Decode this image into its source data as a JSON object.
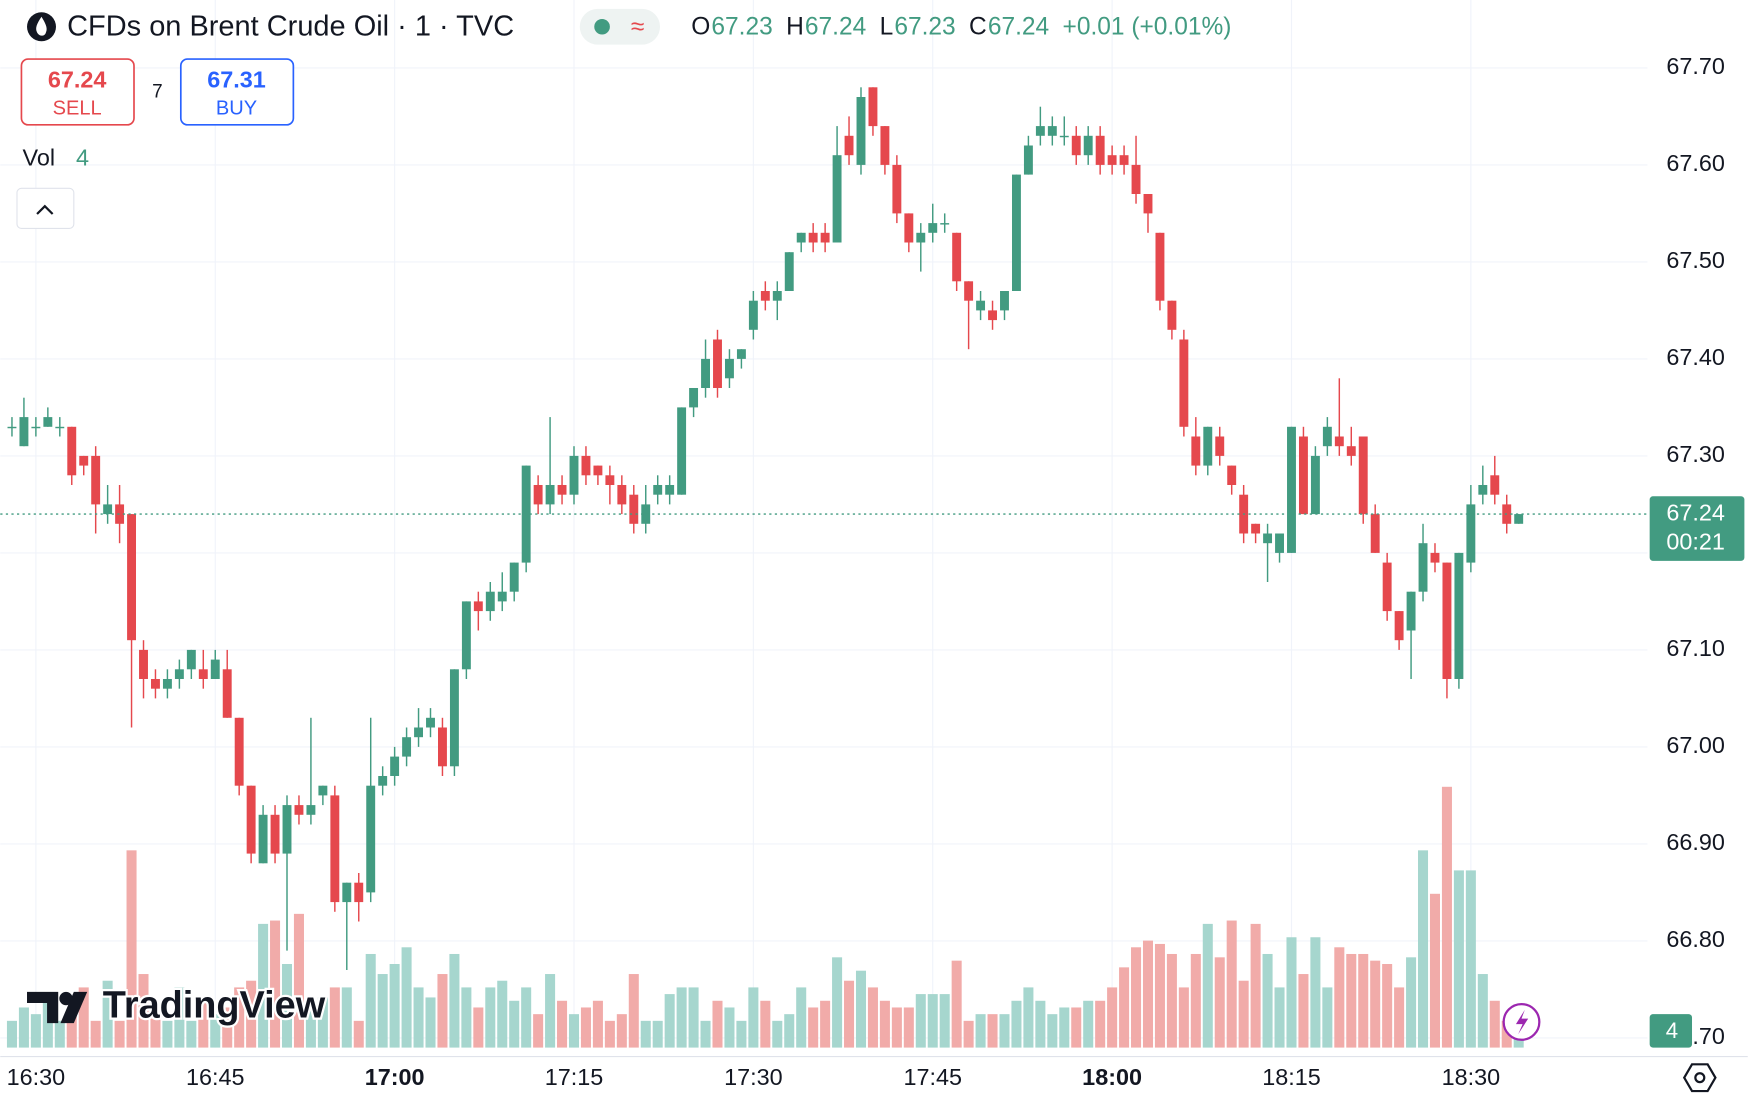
{
  "header": {
    "symbol": "CFDs on Brent Crude Oil · 1 · TVC",
    "sell_price": "67.24",
    "sell_label": "SELL",
    "spread": "7",
    "buy_price": "67.31",
    "buy_label": "BUY",
    "ohlc_labels": [
      "O",
      "H",
      "L",
      "C"
    ],
    "change": "+0.01 (+0.01%)",
    "volume_label": "Vol",
    "countdown": "00:21",
    "logo": "TradingView"
  },
  "chart_data": {
    "type": "candlestick",
    "up_color": "#429b81",
    "down_color": "#e5484d",
    "volume_up_color": "#a6d6ce",
    "volume_down_color": "#f1aba9",
    "ylim": [
      66.69,
      67.77
    ],
    "yticks": [
      {
        "value": 66.7,
        "label": "66.70"
      },
      {
        "value": 66.8,
        "label": "66.80"
      },
      {
        "value": 66.9,
        "label": "66.90"
      },
      {
        "value": 67.0,
        "label": "67.00"
      },
      {
        "value": 67.1,
        "label": "67.10"
      },
      {
        "value": 67.2,
        "label": "67.20"
      },
      {
        "value": 67.3,
        "label": "67.30"
      },
      {
        "value": 67.4,
        "label": "67.40"
      },
      {
        "value": 67.5,
        "label": "67.50"
      },
      {
        "value": 67.6,
        "label": "67.60"
      },
      {
        "value": 67.7,
        "label": "67.70"
      }
    ],
    "xticks": [
      "16:30",
      "16:45",
      "17:00",
      "17:15",
      "17:30",
      "17:45",
      "18:00",
      "18:15",
      "18:30"
    ],
    "grid": true,
    "x": [
      "16:28",
      "16:29",
      "16:30",
      "16:31",
      "16:32",
      "16:33",
      "16:34",
      "16:35",
      "16:36",
      "16:37",
      "16:38",
      "16:39",
      "16:40",
      "16:41",
      "16:42",
      "16:43",
      "16:44",
      "16:45",
      "16:46",
      "16:47",
      "16:48",
      "16:49",
      "16:50",
      "16:51",
      "16:52",
      "16:53",
      "16:54",
      "16:55",
      "16:56",
      "16:57",
      "16:58",
      "16:59",
      "17:00",
      "17:01",
      "17:02",
      "17:03",
      "17:04",
      "17:05",
      "17:06",
      "17:07",
      "17:08",
      "17:09",
      "17:10",
      "17:11",
      "17:12",
      "17:13",
      "17:14",
      "17:15",
      "17:16",
      "17:17",
      "17:18",
      "17:19",
      "17:20",
      "17:21",
      "17:22",
      "17:23",
      "17:24",
      "17:25",
      "17:26",
      "17:27",
      "17:28",
      "17:29",
      "17:30",
      "17:31",
      "17:32",
      "17:33",
      "17:34",
      "17:35",
      "17:36",
      "17:37",
      "17:38",
      "17:39",
      "17:40",
      "17:41",
      "17:42",
      "17:43",
      "17:44",
      "17:45",
      "17:46",
      "17:47",
      "17:48",
      "17:49",
      "17:50",
      "17:51",
      "17:52",
      "17:53",
      "17:54",
      "17:55",
      "17:56",
      "17:57",
      "17:58",
      "17:59",
      "18:00",
      "18:01",
      "18:02",
      "18:03",
      "18:04",
      "18:05",
      "18:06",
      "18:07",
      "18:08",
      "18:09",
      "18:10",
      "18:11",
      "18:12",
      "18:13",
      "18:14",
      "18:15",
      "18:16",
      "18:17",
      "18:18",
      "18:19",
      "18:20",
      "18:21",
      "18:22",
      "18:23",
      "18:24",
      "18:25",
      "18:26",
      "18:27",
      "18:28",
      "18:29",
      "18:30",
      "18:31",
      "18:32",
      "18:33",
      "18:34"
    ],
    "open": [
      67.33,
      67.31,
      67.33,
      67.33,
      67.33,
      67.33,
      67.3,
      67.3,
      67.24,
      67.25,
      67.24,
      67.1,
      67.07,
      67.06,
      67.07,
      67.08,
      67.08,
      67.07,
      67.08,
      67.03,
      66.96,
      66.88,
      66.93,
      66.89,
      66.94,
      66.93,
      66.95,
      66.95,
      66.84,
      66.86,
      66.85,
      66.96,
      66.97,
      66.99,
      67.01,
      67.02,
      67.02,
      66.98,
      67.08,
      67.15,
      67.14,
      67.15,
      67.16,
      67.19,
      67.27,
      67.25,
      67.27,
      67.26,
      67.3,
      67.29,
      67.28,
      67.27,
      67.26,
      67.23,
      67.26,
      67.26,
      67.26,
      67.35,
      67.37,
      67.42,
      67.38,
      67.4,
      67.43,
      67.47,
      67.46,
      67.47,
      67.52,
      67.53,
      67.53,
      67.52,
      67.63,
      67.6,
      67.68,
      67.64,
      67.6,
      67.55,
      67.52,
      67.53,
      67.54,
      67.53,
      67.48,
      67.45,
      67.45,
      67.45,
      67.47,
      67.59,
      67.63,
      67.63,
      67.63,
      67.63,
      67.61,
      67.63,
      67.61,
      67.61,
      67.6,
      67.57,
      67.53,
      67.46,
      67.42,
      67.32,
      67.29,
      67.32,
      67.29,
      67.26,
      67.23,
      67.21,
      67.2,
      67.2,
      67.32,
      67.24,
      67.31,
      67.32,
      67.31,
      67.32,
      67.24,
      67.19,
      67.14,
      67.12,
      67.16,
      67.2,
      67.19,
      67.07,
      67.19,
      67.26,
      67.28,
      67.25,
      67.23
    ],
    "high": [
      67.34,
      67.36,
      67.34,
      67.35,
      67.34,
      67.33,
      67.3,
      67.31,
      67.27,
      67.27,
      67.24,
      67.11,
      67.08,
      67.08,
      67.09,
      67.1,
      67.1,
      67.1,
      67.1,
      67.03,
      66.96,
      66.94,
      66.94,
      66.95,
      66.95,
      67.03,
      66.96,
      66.96,
      66.86,
      66.87,
      67.03,
      66.98,
      67.0,
      67.02,
      67.04,
      67.04,
      67.03,
      67.08,
      67.15,
      67.16,
      67.17,
      67.18,
      67.19,
      67.29,
      67.28,
      67.34,
      67.28,
      67.31,
      67.31,
      67.29,
      67.29,
      67.28,
      67.27,
      67.27,
      67.28,
      67.28,
      67.35,
      67.37,
      67.42,
      67.43,
      67.41,
      67.41,
      67.47,
      67.48,
      67.48,
      67.51,
      67.53,
      67.54,
      67.54,
      67.64,
      67.65,
      67.68,
      67.68,
      67.64,
      67.61,
      67.55,
      67.54,
      67.56,
      67.55,
      67.53,
      67.48,
      67.47,
      67.46,
      67.47,
      67.59,
      67.63,
      67.66,
      67.65,
      67.65,
      67.64,
      67.64,
      67.64,
      67.62,
      67.62,
      67.63,
      67.57,
      67.53,
      67.46,
      67.43,
      67.34,
      67.33,
      67.33,
      67.29,
      67.27,
      67.23,
      67.23,
      67.22,
      67.33,
      67.33,
      67.31,
      67.34,
      67.38,
      67.33,
      67.32,
      67.25,
      67.2,
      67.14,
      67.16,
      67.23,
      67.21,
      67.19,
      67.2,
      67.27,
      67.29,
      67.3,
      67.26,
      67.24
    ],
    "low": [
      67.32,
      67.31,
      67.32,
      67.33,
      67.32,
      67.27,
      67.28,
      67.22,
      67.23,
      67.21,
      67.02,
      67.05,
      67.05,
      67.05,
      67.06,
      67.07,
      67.06,
      67.07,
      67.03,
      66.95,
      66.88,
      66.88,
      66.88,
      66.79,
      66.92,
      66.92,
      66.94,
      66.83,
      66.77,
      66.82,
      66.84,
      66.95,
      66.96,
      66.98,
      67.0,
      67.01,
      66.97,
      66.97,
      67.07,
      67.12,
      67.13,
      67.14,
      67.15,
      67.18,
      67.24,
      67.24,
      67.25,
      67.25,
      67.27,
      67.27,
      67.25,
      67.24,
      67.22,
      67.22,
      67.25,
      67.25,
      67.26,
      67.34,
      67.36,
      67.36,
      67.37,
      67.39,
      67.42,
      67.45,
      67.44,
      67.47,
      67.51,
      67.51,
      67.51,
      67.52,
      67.6,
      67.59,
      67.63,
      67.59,
      67.54,
      67.51,
      67.49,
      67.52,
      67.53,
      67.47,
      67.41,
      67.44,
      67.43,
      67.44,
      67.47,
      67.59,
      67.62,
      67.62,
      67.62,
      67.6,
      67.6,
      67.59,
      67.59,
      67.59,
      67.56,
      67.53,
      67.45,
      67.42,
      67.32,
      67.28,
      67.28,
      67.29,
      67.26,
      67.21,
      67.21,
      67.17,
      67.19,
      67.2,
      67.24,
      67.24,
      67.3,
      67.3,
      67.29,
      67.23,
      67.2,
      67.13,
      67.1,
      67.07,
      67.15,
      67.18,
      67.05,
      67.06,
      67.18,
      67.25,
      67.25,
      67.22,
      67.23
    ],
    "close": [
      67.33,
      67.34,
      67.33,
      67.34,
      67.33,
      67.28,
      67.29,
      67.25,
      67.25,
      67.23,
      67.11,
      67.07,
      67.06,
      67.07,
      67.08,
      67.1,
      67.07,
      67.09,
      67.03,
      66.96,
      66.89,
      66.93,
      66.89,
      66.94,
      66.93,
      66.94,
      66.96,
      66.84,
      66.86,
      66.84,
      66.96,
      66.97,
      66.99,
      67.01,
      67.02,
      67.03,
      66.98,
      67.08,
      67.15,
      67.14,
      67.16,
      67.16,
      67.19,
      67.29,
      67.25,
      67.27,
      67.26,
      67.3,
      67.28,
      67.28,
      67.27,
      67.25,
      67.23,
      67.25,
      67.27,
      67.27,
      67.35,
      67.37,
      67.4,
      67.37,
      67.4,
      67.41,
      67.46,
      67.46,
      67.47,
      67.51,
      67.53,
      67.52,
      67.52,
      67.61,
      67.61,
      67.67,
      67.64,
      67.6,
      67.55,
      67.52,
      67.53,
      67.54,
      67.54,
      67.48,
      67.46,
      67.46,
      67.44,
      67.47,
      67.59,
      67.62,
      67.64,
      67.64,
      67.63,
      67.61,
      67.63,
      67.6,
      67.6,
      67.6,
      67.57,
      67.55,
      67.46,
      67.43,
      67.33,
      67.29,
      67.33,
      67.3,
      67.27,
      67.22,
      67.22,
      67.22,
      67.22,
      67.33,
      67.24,
      67.3,
      67.33,
      67.31,
      67.3,
      67.24,
      67.2,
      67.14,
      67.11,
      67.16,
      67.21,
      67.19,
      67.07,
      67.2,
      67.25,
      67.27,
      67.26,
      67.23,
      67.24
    ],
    "volume": [
      8,
      12,
      10,
      14,
      8,
      11,
      18,
      8,
      20,
      8,
      59,
      22,
      10,
      8,
      18,
      8,
      15,
      10,
      12,
      18,
      20,
      37,
      38,
      25,
      40,
      12,
      15,
      18,
      18,
      8,
      28,
      22,
      25,
      30,
      18,
      15,
      22,
      28,
      18,
      12,
      18,
      20,
      14,
      18,
      10,
      22,
      14,
      10,
      12,
      14,
      8,
      10,
      22,
      8,
      8,
      16,
      18,
      18,
      8,
      14,
      12,
      8,
      18,
      14,
      8,
      10,
      18,
      12,
      14,
      27,
      20,
      23,
      18,
      14,
      12,
      12,
      16,
      16,
      16,
      26,
      8,
      10,
      10,
      10,
      14,
      18,
      14,
      10,
      12,
      12,
      14,
      14,
      18,
      24,
      30,
      32,
      31,
      28,
      18,
      28,
      37,
      27,
      38,
      20,
      37,
      28,
      18,
      33,
      22,
      33,
      18,
      30,
      28,
      28,
      26,
      25,
      18,
      27,
      59,
      46,
      78,
      53,
      53,
      22,
      14,
      8,
      4
    ]
  }
}
